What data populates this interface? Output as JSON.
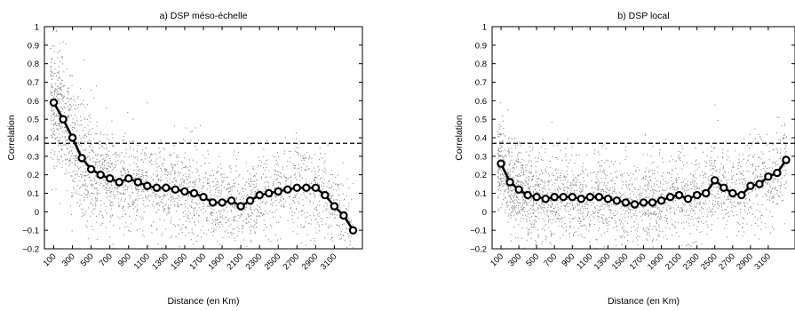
{
  "chart_data": [
    {
      "type": "scatter",
      "title": "a) DSP méso-échelle",
      "xlabel": "Distance (en Km)",
      "ylabel": "Correlation",
      "xlim": [
        0,
        3400
      ],
      "ylim": [
        -0.2,
        1
      ],
      "yticks": [
        -0.2,
        -0.1,
        0,
        0.1,
        0.2,
        0.3,
        0.4,
        0.5,
        0.6,
        0.7,
        0.8,
        0.9,
        1
      ],
      "ytick_labels": [
        "−0.2",
        "−0.1",
        "0",
        "0.1",
        "0.2",
        "0.3",
        "0.4",
        "0.5",
        "0.6",
        "0.7",
        "0.8",
        "0.9",
        "1"
      ],
      "xticks": [
        100,
        300,
        500,
        700,
        900,
        1100,
        1300,
        1500,
        1700,
        1900,
        2100,
        2300,
        2500,
        2700,
        2900,
        3100
      ],
      "xtick_labels": [
        "100",
        "300",
        "500",
        "700",
        "900",
        "1100",
        "1300",
        "1500",
        "1700",
        "1900",
        "2100",
        "2300",
        "2500",
        "2700",
        "2900",
        "3100"
      ],
      "threshold": 0.37,
      "grid": false,
      "series": [
        {
          "x": [
            100,
            200,
            300,
            400,
            500,
            600,
            700,
            800,
            900,
            1000,
            1100,
            1200,
            1300,
            1400,
            1500,
            1600,
            1700,
            1800,
            1900,
            2000,
            2100,
            2200,
            2300,
            2400,
            2500,
            2600,
            2700,
            2800,
            2900,
            3000,
            3100,
            3200,
            3300
          ],
          "y": [
            0.59,
            0.5,
            0.4,
            0.29,
            0.23,
            0.2,
            0.18,
            0.16,
            0.18,
            0.16,
            0.14,
            0.13,
            0.13,
            0.12,
            0.11,
            0.1,
            0.08,
            0.05,
            0.05,
            0.06,
            0.03,
            0.06,
            0.09,
            0.1,
            0.11,
            0.12,
            0.13,
            0.13,
            0.13,
            0.09,
            0.03,
            -0.02,
            -0.1
          ]
        }
      ]
    },
    {
      "type": "scatter",
      "title": "b) DSP local",
      "xlabel": "Distance (en Km)",
      "ylabel": "Correlation",
      "xlim": [
        0,
        3400
      ],
      "ylim": [
        -0.2,
        1
      ],
      "yticks": [
        -0.2,
        -0.1,
        0,
        0.1,
        0.2,
        0.3,
        0.4,
        0.5,
        0.6,
        0.7,
        0.8,
        0.9,
        1
      ],
      "ytick_labels": [
        "−0.2",
        "−0.1",
        "0",
        "0.1",
        "0.2",
        "0.3",
        "0.4",
        "0.5",
        "0.6",
        "0.7",
        "0.8",
        "0.9",
        "1"
      ],
      "xticks": [
        100,
        300,
        500,
        700,
        900,
        1100,
        1300,
        1500,
        1700,
        1900,
        2100,
        2300,
        2500,
        2700,
        2900,
        3100
      ],
      "xtick_labels": [
        "100",
        "300",
        "500",
        "700",
        "900",
        "1100",
        "1300",
        "1500",
        "1700",
        "1900",
        "2100",
        "2300",
        "2500",
        "2700",
        "2900",
        "3100"
      ],
      "threshold": 0.37,
      "grid": false,
      "series": [
        {
          "x": [
            100,
            200,
            300,
            400,
            500,
            600,
            700,
            800,
            900,
            1000,
            1100,
            1200,
            1300,
            1400,
            1500,
            1600,
            1700,
            1800,
            1900,
            2000,
            2100,
            2200,
            2300,
            2400,
            2500,
            2600,
            2700,
            2800,
            2900,
            3000,
            3100,
            3200,
            3300
          ],
          "y": [
            0.26,
            0.16,
            0.12,
            0.09,
            0.08,
            0.07,
            0.08,
            0.08,
            0.08,
            0.07,
            0.08,
            0.08,
            0.07,
            0.06,
            0.05,
            0.04,
            0.05,
            0.05,
            0.06,
            0.08,
            0.09,
            0.07,
            0.09,
            0.1,
            0.17,
            0.13,
            0.1,
            0.09,
            0.14,
            0.15,
            0.19,
            0.21,
            0.28
          ]
        }
      ]
    }
  ]
}
